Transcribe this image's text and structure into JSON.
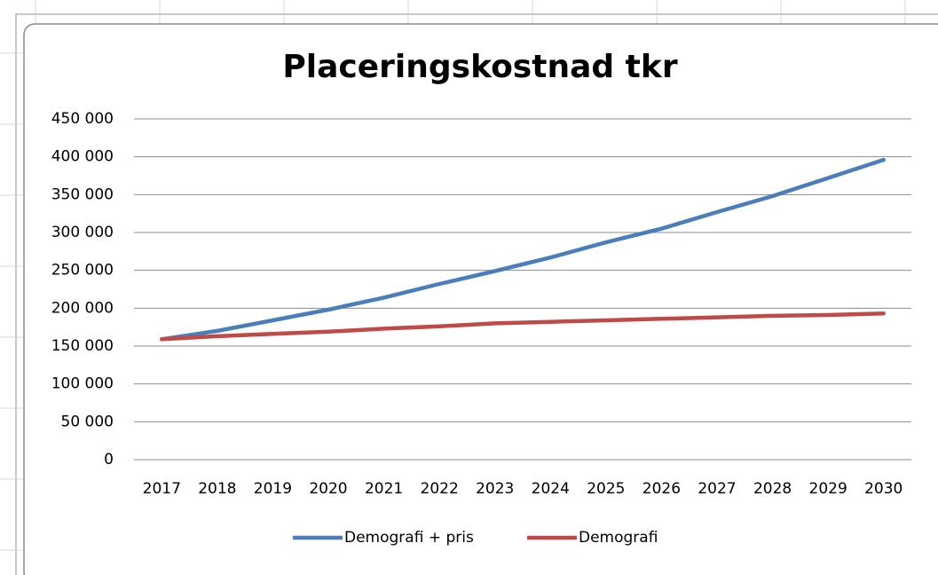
{
  "chart_data": {
    "type": "line",
    "title": "Placeringskostnad  tkr",
    "categories": [
      "2017",
      "2018",
      "2019",
      "2020",
      "2021",
      "2022",
      "2023",
      "2024",
      "2025",
      "2026",
      "2027",
      "2028",
      "2029",
      "2030"
    ],
    "series": [
      {
        "name": "Demografi + pris",
        "color": "#4a7ebb",
        "values": [
          159000,
          170000,
          184000,
          198000,
          214000,
          232000,
          249000,
          267000,
          287000,
          305000,
          327000,
          348000,
          372000,
          396000
        ]
      },
      {
        "name": "Demografi",
        "color": "#be4b48",
        "values": [
          159000,
          163000,
          166000,
          169000,
          173000,
          176000,
          180000,
          182000,
          184000,
          186000,
          188000,
          190000,
          191000,
          193000
        ]
      }
    ],
    "ylim": [
      0,
      450000
    ],
    "yticks": [
      0,
      {
        "value": 50000,
        "label": "50 000"
      },
      {
        "value": 100000,
        "label": "100 000"
      },
      {
        "value": 150000,
        "label": "150 000"
      },
      {
        "value": 200000,
        "label": "200 000"
      },
      {
        "value": 250000,
        "label": "250 000"
      },
      {
        "value": 300000,
        "label": "300 000"
      },
      {
        "value": 350000,
        "label": "350 000"
      },
      {
        "value": 400000,
        "label": "400 000"
      },
      {
        "value": 450000,
        "label": "450 000"
      }
    ],
    "grid": true,
    "legend": "bottom"
  }
}
